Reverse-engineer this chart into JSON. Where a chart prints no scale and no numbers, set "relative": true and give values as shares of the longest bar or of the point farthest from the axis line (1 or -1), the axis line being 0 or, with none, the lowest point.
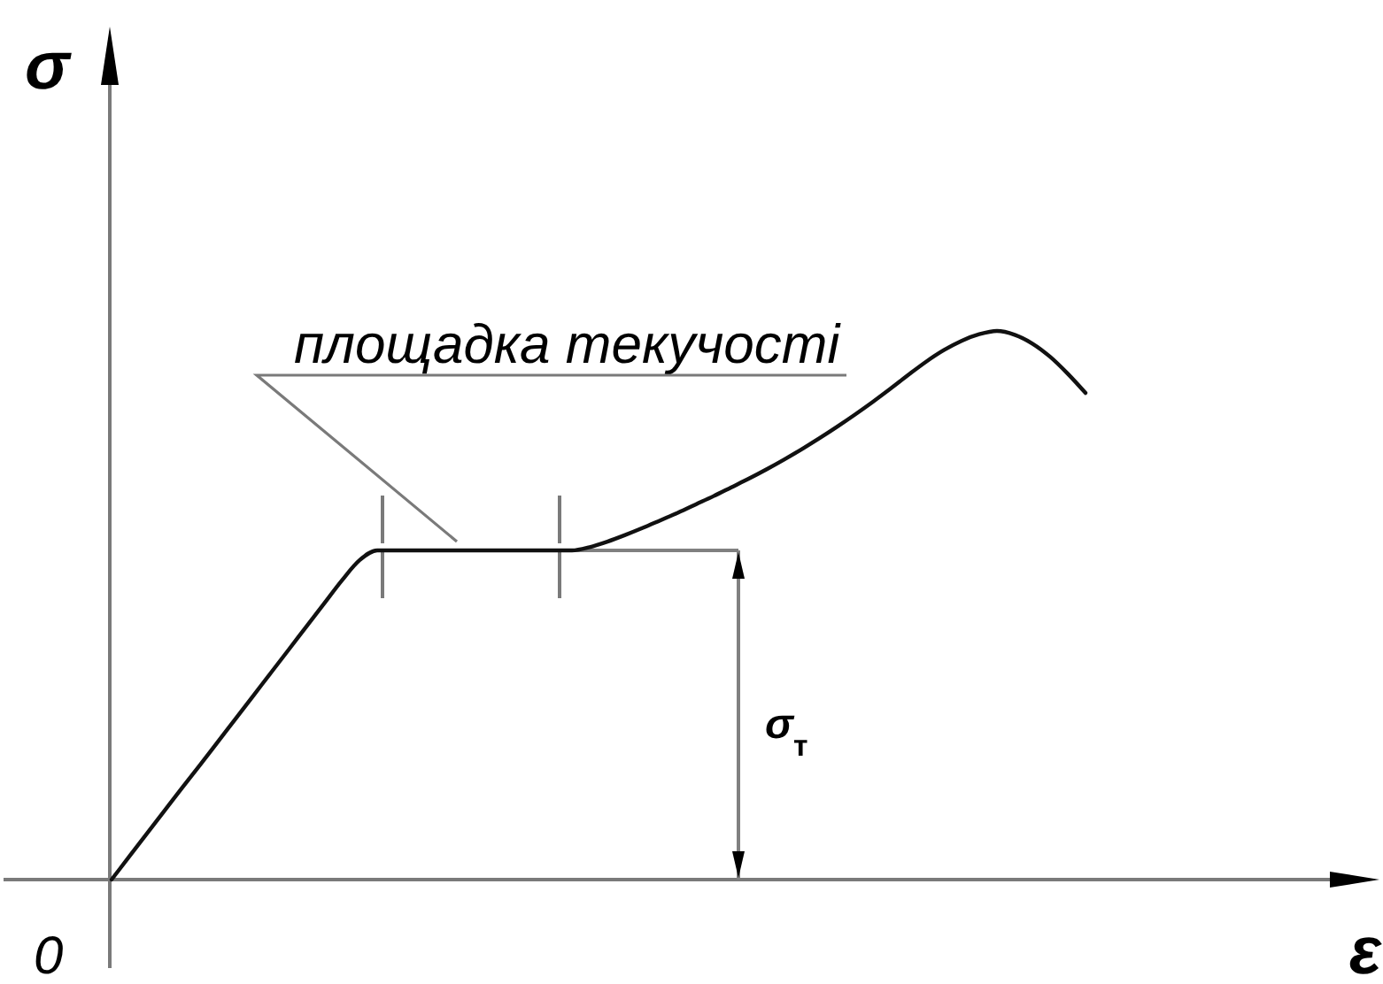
{
  "chart_data": {
    "type": "line",
    "xlabel": "ε",
    "ylabel": "σ",
    "relative": true,
    "categories": [
      null,
      null,
      null,
      null,
      null,
      null,
      null,
      null,
      null,
      null,
      null,
      null,
      null,
      null,
      null,
      null,
      null,
      null,
      null,
      null,
      null,
      null,
      null,
      null,
      null,
      null,
      null,
      null,
      null,
      null,
      null,
      null,
      null,
      null,
      null,
      null,
      null,
      null,
      null,
      null,
      null,
      null,
      null,
      null,
      null,
      null,
      null,
      null,
      null,
      null,
      null,
      null,
      null,
      null,
      null,
      null
    ],
    "values": [
      0,
      0.042,
      0.084,
      0.126,
      0.168,
      0.209,
      0.251,
      0.293,
      0.335,
      0.377,
      0.419,
      0.461,
      0.503,
      0.545,
      0.582,
      0.6,
      0.6,
      0.6,
      0.6,
      0.6,
      0.6,
      0.6,
      0.6,
      0.6,
      0.6,
      0.6,
      0.6,
      0.606,
      0.616,
      0.628,
      0.641,
      0.655,
      0.669,
      0.684,
      0.699,
      0.715,
      0.731,
      0.748,
      0.766,
      0.785,
      0.805,
      0.826,
      0.848,
      0.871,
      0.895,
      0.92,
      0.944,
      0.965,
      0.982,
      0.994,
      1,
      0.993,
      0.977,
      0.953,
      0.922,
      0.887
    ],
    "color": "#111111",
    "ref_lines": [
      {
        "axis": "y",
        "value": 0.6,
        "color": "#808080"
      }
    ],
    "annotations": [
      "площадка текучості",
      "σ$_{т}$",
      "0"
    ]
  }
}
